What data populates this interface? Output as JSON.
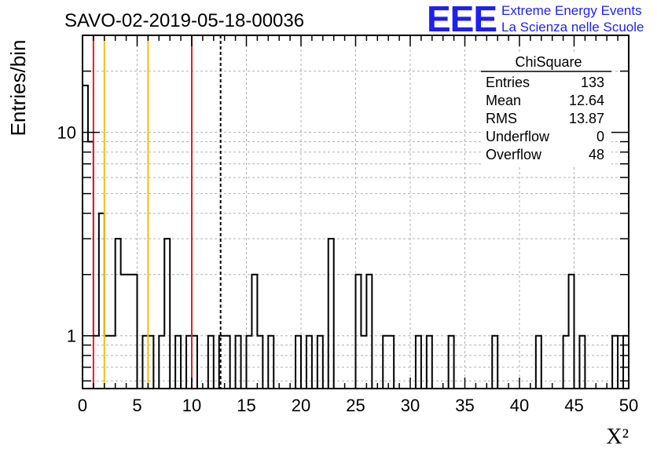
{
  "chart_data": {
    "type": "histogram",
    "title": "SAVO-02-2019-05-18-00036",
    "xlabel": "X²",
    "ylabel": "Entries/bin",
    "xlim": [
      0,
      50
    ],
    "ylim": [
      0.55,
      30
    ],
    "yscale": "log",
    "grid": true,
    "bin_width": 0.5,
    "x_ticks": [
      0,
      5,
      10,
      15,
      20,
      25,
      30,
      35,
      40,
      45,
      50
    ],
    "y_ticks": [
      1,
      10
    ],
    "bins": [
      {
        "x": 0.0,
        "y": 17
      },
      {
        "x": 0.5,
        "y": 9
      },
      {
        "x": 1.0,
        "y": 1
      },
      {
        "x": 1.5,
        "y": 4
      },
      {
        "x": 2.0,
        "y": 1
      },
      {
        "x": 2.5,
        "y": 1
      },
      {
        "x": 3.0,
        "y": 3
      },
      {
        "x": 3.5,
        "y": 2
      },
      {
        "x": 4.0,
        "y": 2
      },
      {
        "x": 4.5,
        "y": 2
      },
      {
        "x": 5.5,
        "y": 1
      },
      {
        "x": 6.0,
        "y": 1
      },
      {
        "x": 7.0,
        "y": 1
      },
      {
        "x": 7.5,
        "y": 3
      },
      {
        "x": 8.5,
        "y": 1
      },
      {
        "x": 9.5,
        "y": 1
      },
      {
        "x": 10.0,
        "y": 1
      },
      {
        "x": 11.5,
        "y": 1
      },
      {
        "x": 12.5,
        "y": 1
      },
      {
        "x": 13.0,
        "y": 1
      },
      {
        "x": 14.0,
        "y": 1
      },
      {
        "x": 15.0,
        "y": 1
      },
      {
        "x": 15.5,
        "y": 2
      },
      {
        "x": 16.0,
        "y": 1
      },
      {
        "x": 17.0,
        "y": 1
      },
      {
        "x": 19.5,
        "y": 1
      },
      {
        "x": 20.5,
        "y": 1
      },
      {
        "x": 21.5,
        "y": 1
      },
      {
        "x": 22.5,
        "y": 3
      },
      {
        "x": 25.0,
        "y": 2
      },
      {
        "x": 25.5,
        "y": 1
      },
      {
        "x": 26.0,
        "y": 2
      },
      {
        "x": 27.5,
        "y": 1
      },
      {
        "x": 28.0,
        "y": 1
      },
      {
        "x": 30.5,
        "y": 1
      },
      {
        "x": 31.5,
        "y": 1
      },
      {
        "x": 33.5,
        "y": 1
      },
      {
        "x": 37.5,
        "y": 1
      },
      {
        "x": 41.5,
        "y": 1
      },
      {
        "x": 44.0,
        "y": 1
      },
      {
        "x": 44.5,
        "y": 2
      },
      {
        "x": 45.5,
        "y": 1
      },
      {
        "x": 48.5,
        "y": 1
      },
      {
        "x": 49.5,
        "y": 1
      }
    ],
    "vertical_lines": [
      {
        "x": 1,
        "color": "#e02020",
        "style": "solid"
      },
      {
        "x": 2,
        "color": "#f2c00b",
        "style": "solid"
      },
      {
        "x": 6,
        "color": "#f2c00b",
        "style": "solid"
      },
      {
        "x": 10,
        "color": "#e02020",
        "style": "solid"
      },
      {
        "x": 12.64,
        "color": "#000000",
        "style": "dashed"
      }
    ],
    "stats": {
      "name": "ChiSquare",
      "rows": [
        {
          "label": "Entries",
          "value": "133"
        },
        {
          "label": "Mean",
          "value": "12.64"
        },
        {
          "label": "RMS",
          "value": "13.87"
        },
        {
          "label": "Underflow",
          "value": "0"
        },
        {
          "label": "Overflow",
          "value": "48"
        }
      ]
    }
  },
  "logo": {
    "mark": "EEE",
    "line1": "Extreme Energy Events",
    "line2": "La Scienza nelle Scuole",
    "color": "#1f1fef"
  }
}
